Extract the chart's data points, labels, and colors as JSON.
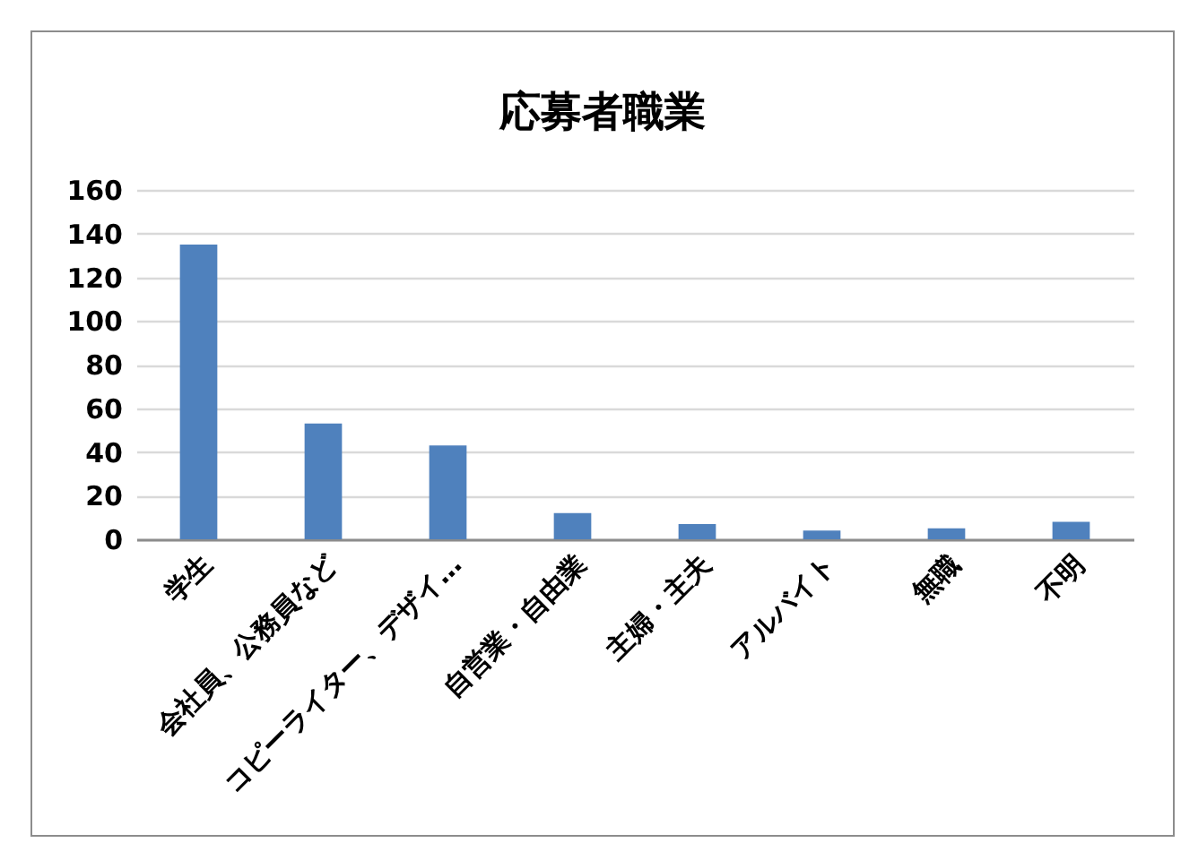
{
  "chart_data": {
    "type": "bar",
    "title": "応募者職業",
    "categories": [
      "学生",
      "会社員、公務員など",
      "コピーライター、デザイ…",
      "自営業・自由業",
      "主婦・主夫",
      "アルバイト",
      "無職",
      "不明"
    ],
    "values": [
      135,
      53,
      43,
      12,
      7,
      4,
      5,
      8
    ],
    "color": "#4f81bd",
    "ylim": [
      0,
      160
    ],
    "yticks": [
      0,
      20,
      40,
      60,
      80,
      100,
      120,
      140,
      160
    ],
    "grid": "y"
  }
}
